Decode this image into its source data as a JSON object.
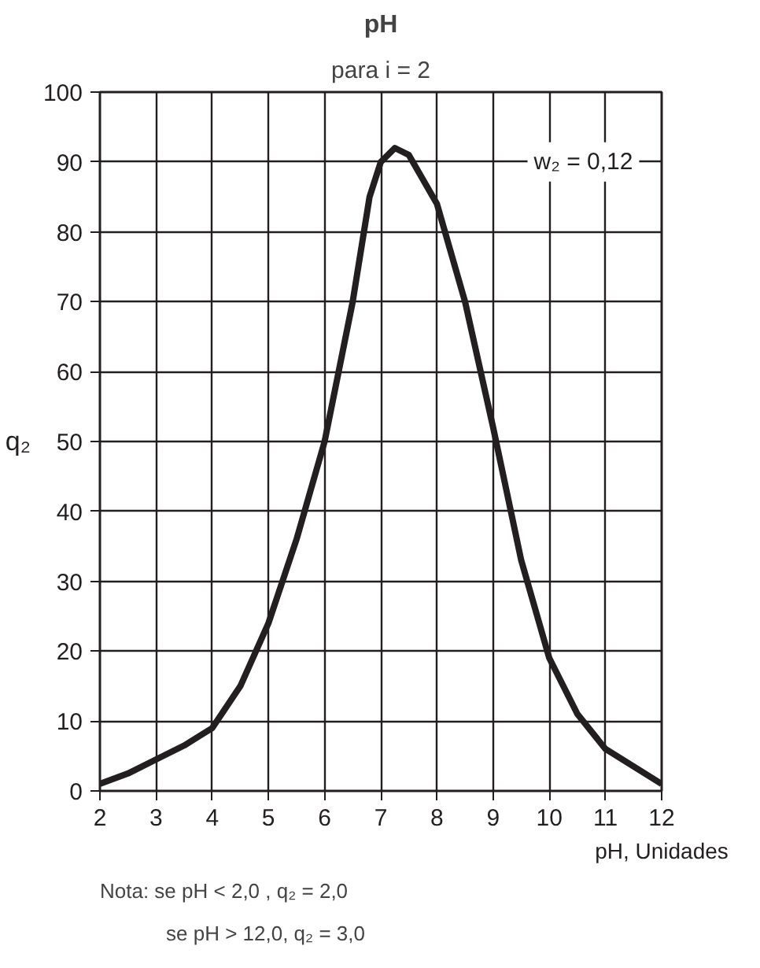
{
  "chart_data": {
    "type": "line",
    "title": "pH",
    "subtitle": "para i = 2",
    "xlabel": "pH, Unidades",
    "ylabel": "q₂",
    "x": [
      2,
      2.5,
      3,
      3.5,
      4,
      4.5,
      5,
      5.5,
      6,
      6.5,
      6.8,
      7,
      7.25,
      7.5,
      8,
      8.5,
      9,
      9.5,
      10,
      10.5,
      11,
      11.5,
      12
    ],
    "series": [
      {
        "color": "#231f20",
        "values": [
          1,
          2.5,
          4.5,
          6.5,
          9,
          15,
          24,
          36,
          50,
          70,
          85,
          90,
          92,
          91,
          84,
          70,
          52,
          33,
          19,
          11,
          6,
          3.5,
          1
        ]
      }
    ],
    "xlim": [
      2,
      12
    ],
    "ylim": [
      0,
      100
    ],
    "xticks": [
      2,
      3,
      4,
      5,
      6,
      7,
      8,
      9,
      10,
      11,
      12
    ],
    "yticks": [
      0,
      10,
      20,
      30,
      40,
      50,
      60,
      70,
      80,
      90,
      100
    ],
    "grid": true,
    "marker": "none",
    "line_style": "solid",
    "annotations": [
      "w₂ = 0,12",
      "Nota:  se pH < 2,0 ,  q₂ = 2,0",
      "se pH > 12,0,  q₂ = 3,0"
    ]
  }
}
